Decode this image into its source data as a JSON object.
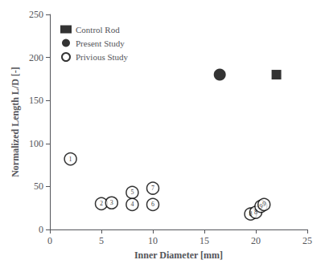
{
  "chart_data": {
    "type": "scatter",
    "title": "",
    "xlabel": "Inner Diameter [mm]",
    "ylabel": "Normalized Length L/D [-]",
    "xlim": [
      0,
      25
    ],
    "ylim": [
      0,
      250
    ],
    "xticks": [
      0,
      5,
      10,
      15,
      20,
      25
    ],
    "yticks": [
      0,
      50,
      100,
      150,
      200,
      250
    ],
    "grid": false,
    "legend": "upper left",
    "series": [
      {
        "name": "Control Rod",
        "marker": "square",
        "color": "#000000",
        "x": [
          22
        ],
        "y": [
          180
        ]
      },
      {
        "name": "Present Study",
        "marker": "circle",
        "color": "#000000",
        "x": [
          16.5
        ],
        "y": [
          180
        ]
      },
      {
        "name": "Privious Study",
        "marker": "ring",
        "color": "#000000",
        "x": [
          2.0,
          5.0,
          6.0,
          8.0,
          8.0,
          10.0,
          10.0,
          19.5,
          20.0,
          20.5,
          20.8
        ],
        "y": [
          82,
          30,
          31,
          43,
          29,
          48,
          29,
          18,
          20,
          27,
          29
        ],
        "labels": [
          "1",
          "2",
          "3",
          "5",
          "4",
          "7",
          "6",
          "8",
          "8",
          "9",
          "9"
        ]
      }
    ]
  }
}
